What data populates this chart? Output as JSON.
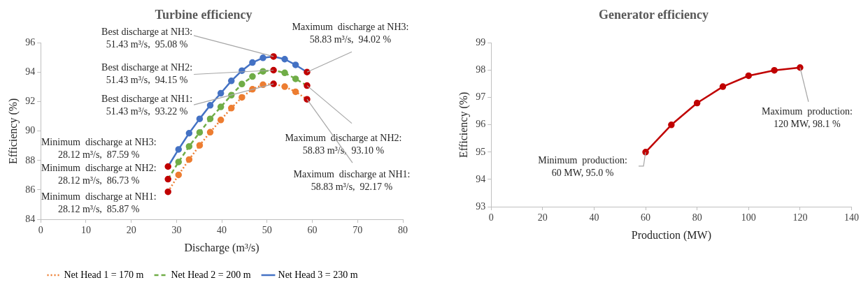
{
  "chart_data": [
    {
      "type": "line",
      "title": "Turbine efficiency",
      "xlabel": "Discharge (m³/s)",
      "ylabel": "Efficiency (%)",
      "xlim": [
        0,
        80
      ],
      "xticks": [
        0,
        10,
        20,
        30,
        40,
        50,
        60,
        70,
        80
      ],
      "ylim": [
        84,
        96
      ],
      "yticks": [
        84,
        86,
        88,
        90,
        92,
        94,
        96
      ],
      "grid": false,
      "legend": "bottom",
      "marker": "circle",
      "x": [
        28.12,
        30.45,
        32.78,
        35.11,
        37.44,
        39.78,
        42.11,
        44.44,
        46.77,
        49.1,
        51.43,
        53.9,
        56.3,
        58.83
      ],
      "series": [
        {
          "name": "Net Head 1 = 170 m",
          "color": "#ed7d31",
          "line_style": "dotted",
          "values": [
            85.87,
            87.02,
            88.07,
            89.03,
            89.93,
            90.76,
            91.57,
            92.3,
            92.85,
            93.16,
            93.22,
            93.03,
            92.68,
            92.17
          ],
          "colors": [
            "#c00000",
            "#ed7d31",
            "#ed7d31",
            "#ed7d31",
            "#ed7d31",
            "#ed7d31",
            "#ed7d31",
            "#ed7d31",
            "#ed7d31",
            "#ed7d31",
            "#c00000",
            "#ed7d31",
            "#ed7d31",
            "#c00000"
          ]
        },
        {
          "name": "Net Head 2 = 200 m",
          "color": "#70ad47",
          "line_style": "dashed",
          "values": [
            86.73,
            87.9,
            88.96,
            89.91,
            90.84,
            91.65,
            92.45,
            93.21,
            93.72,
            94.07,
            94.15,
            93.97,
            93.56,
            93.1
          ],
          "colors": [
            "#c00000",
            "#70ad47",
            "#70ad47",
            "#70ad47",
            "#70ad47",
            "#70ad47",
            "#70ad47",
            "#70ad47",
            "#70ad47",
            "#70ad47",
            "#c00000",
            "#70ad47",
            "#70ad47",
            "#c00000"
          ]
        },
        {
          "name": "Net Head 3 = 230 m",
          "color": "#4472c4",
          "line_style": "solid",
          "values": [
            87.59,
            88.76,
            89.86,
            90.84,
            91.76,
            92.58,
            93.42,
            94.12,
            94.67,
            94.99,
            95.08,
            94.9,
            94.51,
            94.02
          ],
          "colors": [
            "#c00000",
            "#4472c4",
            "#4472c4",
            "#4472c4",
            "#4472c4",
            "#4472c4",
            "#4472c4",
            "#4472c4",
            "#4472c4",
            "#4472c4",
            "#c00000",
            "#4472c4",
            "#4472c4",
            "#c00000"
          ]
        }
      ],
      "annotations": [
        {
          "text": "Best discharge at NH3:\n51.43 m³/s,  95.08 %",
          "x": 51.43,
          "y": 95.08
        },
        {
          "text": "Best discharge at NH2:\n51.43 m³/s,  94.15 %",
          "x": 51.43,
          "y": 94.15
        },
        {
          "text": "Best discharge at NH1:\n51.43 m³/s,  93.22 %",
          "x": 51.43,
          "y": 93.22
        },
        {
          "text": "Maximum  discharge at NH3:\n58.83 m³/s,  94.02 %",
          "x": 58.83,
          "y": 94.02
        },
        {
          "text": "Maximum  discharge at NH2:\n58.83 m³/s,  93.10 %",
          "x": 58.83,
          "y": 93.1
        },
        {
          "text": "Maximum  discharge at NH1:\n58.83 m³/s,  92.17 %",
          "x": 58.83,
          "y": 92.17
        },
        {
          "text": "Minimum  discharge at NH3:\n28.12 m³/s,  87.59 %",
          "x": 28.12,
          "y": 87.59
        },
        {
          "text": "Minimum  discharge at NH2:\n28.12 m³/s,  86.73 %",
          "x": 28.12,
          "y": 86.73
        },
        {
          "text": "Minimum  discharge at NH1:\n28.12 m³/s,  85.87 %",
          "x": 28.12,
          "y": 85.87
        }
      ]
    },
    {
      "type": "line",
      "title": "Generator efficiency",
      "xlabel": "Production (MW)",
      "ylabel": "Efficiency (%)",
      "xlim": [
        0,
        140
      ],
      "xticks": [
        0,
        20,
        40,
        60,
        80,
        100,
        120,
        140
      ],
      "ylim": [
        93,
        99
      ],
      "yticks": [
        93,
        94,
        95,
        96,
        97,
        98,
        99
      ],
      "grid": false,
      "legend": false,
      "marker": "circle",
      "x": [
        60,
        70,
        80,
        90,
        100,
        110,
        120
      ],
      "series": [
        {
          "color": "#c00000",
          "line_style": "solid",
          "values": [
            95.0,
            96.0,
            96.8,
            97.4,
            97.8,
            98.0,
            98.1
          ]
        }
      ],
      "annotations": [
        {
          "text": "Minimum  production:\n60 MW, 95.0 %",
          "x": 60,
          "y": 95.0
        },
        {
          "text": "Maximum  production:\n120 MW, 98.1 %",
          "x": 120,
          "y": 98.1
        }
      ]
    }
  ]
}
